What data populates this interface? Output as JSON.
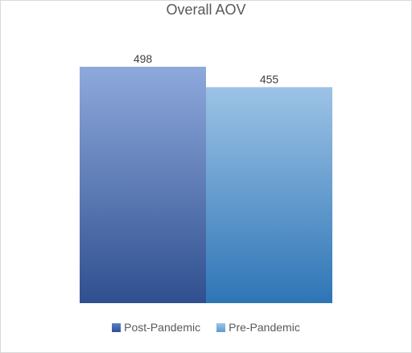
{
  "chart_data": {
    "type": "bar",
    "title": "Overall AOV",
    "series": [
      {
        "name": "Post-Pandemic",
        "values": [
          498
        ]
      },
      {
        "name": "Pre-Pandemic",
        "values": [
          455
        ]
      }
    ],
    "ylim": [
      0,
      498
    ],
    "grid": false,
    "legend_position": "bottom",
    "colors": {
      "Post-Pandemic": {
        "top": "#8ea9dc",
        "bottom": "#2f4f8f"
      },
      "Pre-Pandemic": {
        "top": "#9dc3e6",
        "bottom": "#2e75b6"
      }
    }
  }
}
